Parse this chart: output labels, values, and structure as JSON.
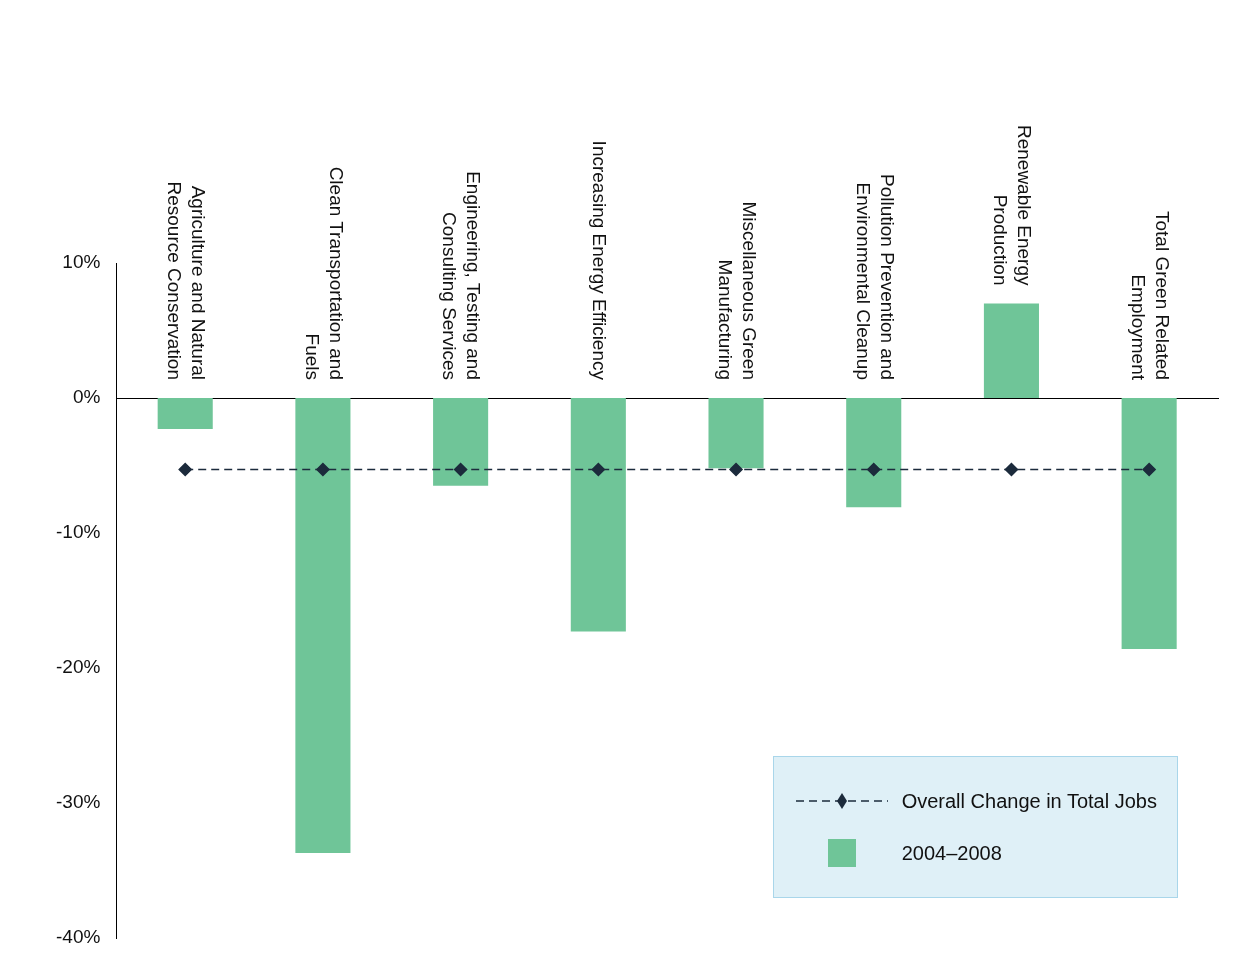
{
  "chart_data": {
    "type": "bar",
    "categories": [
      "Agriculture and Natural Resource Conservation",
      "Clean Transportation and Fuels",
      "Engineering, Testing and Consulting Services",
      "Increasing Energy Efficiency",
      "Miscellaneous Green Manufacturing",
      "Pollution Prevention and Environmental Cleanup",
      "Renewable Energy Production",
      "Total Green Related Employment"
    ],
    "series": [
      {
        "name": "Overall Change in Total Jobs",
        "type": "line",
        "color": "#1c2b3c",
        "marker": "diamond",
        "line_style": "dashed",
        "values": [
          -5.3,
          -5.3,
          -5.3,
          -5.3,
          -5.3,
          -5.3,
          -5.3,
          -5.3
        ]
      },
      {
        "name": "2004–2008",
        "color": "#6fc598",
        "values": [
          -2.3,
          -33.7,
          -6.5,
          -17.3,
          -5.2,
          -8.1,
          7.0,
          -18.6
        ]
      }
    ],
    "ylim": [
      -40,
      10
    ],
    "yticks": [
      {
        "value": -40,
        "label": "-40%"
      },
      {
        "value": -30,
        "label": "-30%"
      },
      {
        "value": -20,
        "label": "-20%"
      },
      {
        "value": -10,
        "label": "-10%"
      },
      {
        "value": 0,
        "label": "0%"
      },
      {
        "value": 10,
        "label": "10%"
      }
    ],
    "grid": false,
    "legend": "bottom right"
  }
}
